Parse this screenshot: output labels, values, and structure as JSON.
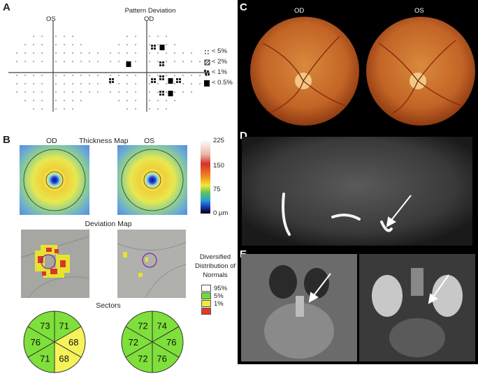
{
  "panels": {
    "A": {
      "letter": "A",
      "title": "Pattern Deviation",
      "os_label": "OS",
      "od_label": "OD",
      "legend": [
        "< 5%",
        "< 2%",
        "< 1%",
        "< 0.5%"
      ]
    },
    "B": {
      "letter": "B",
      "thickness_title": "Thickness Map",
      "od_label": "OD",
      "os_label": "OS",
      "scale_ticks": [
        "225",
        "150",
        "75",
        "0 µm"
      ],
      "deviation_title": "Deviation Map",
      "ddn_title": "Diversified Distribution of Normals",
      "ddn_legend": [
        "95%",
        "5%",
        "1%"
      ],
      "sectors_title": "Sectors",
      "sectors_od": [
        "71",
        "68",
        "68",
        "71",
        "76",
        "73"
      ],
      "sectors_os": [
        "74",
        "76",
        "76",
        "72",
        "72",
        "72"
      ]
    },
    "C": {
      "letter": "C",
      "od_label": "OD",
      "os_label": "OS"
    },
    "D": {
      "letter": "D"
    },
    "E": {
      "letter": "E"
    }
  },
  "colors": {
    "sector_green": "#7ee03a",
    "sector_yellow": "#f6f25a",
    "ddn_red": "#e03a2c",
    "ddn_yellow": "#f0ea3c",
    "ddn_green": "#6edc34"
  }
}
